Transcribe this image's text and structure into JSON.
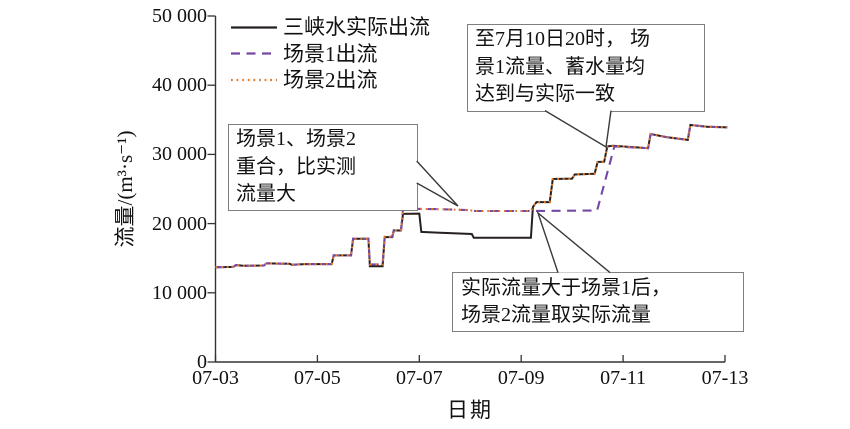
{
  "chart_data": {
    "type": "line",
    "title": "",
    "xlabel": "日期",
    "ylabel": "流量/(m³·s⁻¹)",
    "ylim": [
      0,
      50000
    ],
    "y_ticks": [
      "0",
      "10 000",
      "20 000",
      "30 000",
      "40 000",
      "50 000"
    ],
    "y_tick_values": [
      0,
      10000,
      20000,
      30000,
      40000,
      50000
    ],
    "x_ticks": [
      "07-03",
      "07-05",
      "07-07",
      "07-09",
      "07-11",
      "07-13"
    ],
    "x_tick_days": [
      0,
      2,
      4,
      6,
      8,
      10
    ],
    "x_unit": "days since 07-03 00:00",
    "grid": false,
    "legend_position": "top-left-inside",
    "series": [
      {
        "name": "三峡水实际出流",
        "style": "solid",
        "color": "#262020",
        "points": [
          [
            0,
            13700
          ],
          [
            0.35,
            13750
          ],
          [
            0.4,
            14000
          ],
          [
            0.55,
            13900
          ],
          [
            0.95,
            13950
          ],
          [
            1.0,
            14250
          ],
          [
            1.45,
            14200
          ],
          [
            1.5,
            14050
          ],
          [
            1.75,
            14150
          ],
          [
            2.28,
            14150
          ],
          [
            2.32,
            15400
          ],
          [
            2.66,
            15400
          ],
          [
            2.7,
            17800
          ],
          [
            3.0,
            17800
          ],
          [
            3.03,
            13850
          ],
          [
            3.28,
            13850
          ],
          [
            3.32,
            18050
          ],
          [
            3.47,
            18050
          ],
          [
            3.5,
            19000
          ],
          [
            3.64,
            19000
          ],
          [
            3.68,
            21400
          ],
          [
            4.0,
            21450
          ],
          [
            4.04,
            18800
          ],
          [
            4.35,
            18700
          ],
          [
            5.03,
            18500
          ],
          [
            5.07,
            17950
          ],
          [
            6.19,
            17950
          ],
          [
            6.23,
            22400
          ],
          [
            6.3,
            23100
          ],
          [
            6.56,
            23100
          ],
          [
            6.62,
            26450
          ],
          [
            7.0,
            26500
          ],
          [
            7.05,
            27100
          ],
          [
            7.44,
            27200
          ],
          [
            7.5,
            28900
          ],
          [
            7.63,
            28950
          ],
          [
            7.69,
            31150
          ],
          [
            7.8,
            31250
          ],
          [
            8.49,
            30900
          ],
          [
            8.54,
            32950
          ],
          [
            8.85,
            32500
          ],
          [
            9.27,
            32100
          ],
          [
            9.32,
            34250
          ],
          [
            9.65,
            34000
          ],
          [
            10.05,
            33900
          ]
        ]
      },
      {
        "name": "场景1出流",
        "style": "dashed",
        "color": "#7448A4",
        "points": [
          [
            0,
            13700
          ],
          [
            0.35,
            13750
          ],
          [
            0.4,
            14000
          ],
          [
            0.55,
            13900
          ],
          [
            0.95,
            13950
          ],
          [
            1.0,
            14250
          ],
          [
            1.45,
            14200
          ],
          [
            1.5,
            14050
          ],
          [
            1.75,
            14150
          ],
          [
            2.28,
            14150
          ],
          [
            2.32,
            15400
          ],
          [
            2.66,
            15400
          ],
          [
            2.7,
            17800
          ],
          [
            3.0,
            17800
          ],
          [
            3.03,
            14100
          ],
          [
            3.28,
            14100
          ],
          [
            3.32,
            18100
          ],
          [
            3.47,
            18100
          ],
          [
            3.5,
            19050
          ],
          [
            3.64,
            19050
          ],
          [
            3.68,
            22150
          ],
          [
            4.3,
            22100
          ],
          [
            5.0,
            21950
          ],
          [
            5.05,
            21820
          ],
          [
            6.19,
            21820
          ],
          [
            7.49,
            21900
          ],
          [
            7.83,
            31150
          ],
          [
            8.49,
            30900
          ],
          [
            8.54,
            32950
          ],
          [
            8.85,
            32500
          ],
          [
            9.27,
            32100
          ],
          [
            9.32,
            34250
          ],
          [
            9.65,
            34000
          ],
          [
            10.05,
            33900
          ]
        ]
      },
      {
        "name": "场景2出流",
        "style": "dotted",
        "color": "#E87A2B",
        "points": [
          [
            0,
            13700
          ],
          [
            0.35,
            13750
          ],
          [
            0.4,
            14000
          ],
          [
            0.55,
            13900
          ],
          [
            0.95,
            13950
          ],
          [
            1.0,
            14250
          ],
          [
            1.45,
            14200
          ],
          [
            1.5,
            14050
          ],
          [
            1.75,
            14150
          ],
          [
            2.28,
            14150
          ],
          [
            2.32,
            15400
          ],
          [
            2.66,
            15400
          ],
          [
            2.7,
            17800
          ],
          [
            3.0,
            17800
          ],
          [
            3.03,
            14100
          ],
          [
            3.28,
            14100
          ],
          [
            3.32,
            18100
          ],
          [
            3.47,
            18100
          ],
          [
            3.5,
            19050
          ],
          [
            3.64,
            19050
          ],
          [
            3.68,
            22150
          ],
          [
            4.3,
            22100
          ],
          [
            5.0,
            21950
          ],
          [
            5.05,
            21820
          ],
          [
            6.19,
            21820
          ],
          [
            6.23,
            22400
          ],
          [
            6.3,
            23100
          ],
          [
            6.56,
            23100
          ],
          [
            6.62,
            26450
          ],
          [
            7.0,
            26500
          ],
          [
            7.05,
            27100
          ],
          [
            7.44,
            27200
          ],
          [
            7.5,
            28900
          ],
          [
            7.63,
            28950
          ],
          [
            7.69,
            31150
          ],
          [
            7.8,
            31250
          ],
          [
            8.49,
            30900
          ],
          [
            8.54,
            32950
          ],
          [
            8.85,
            32500
          ],
          [
            9.27,
            32100
          ],
          [
            9.32,
            34250
          ],
          [
            9.65,
            34000
          ],
          [
            10.05,
            33900
          ]
        ]
      }
    ],
    "annotations": [
      {
        "id": "scenario1-reaches-actual",
        "lines": [
          "至7月10日20时，  场",
          "景1流量、蓄水量均",
          "达到与实际一致"
        ],
        "text": "至7月10日20时，场景1流量、蓄水量均达到与实际一致"
      },
      {
        "id": "scenarios-coincide",
        "lines": [
          "场景1、场景2",
          "重合，比实测",
          "流量大"
        ],
        "text": "场景1、场景2重合，比实测流量大"
      },
      {
        "id": "scenario2-takes-actual",
        "lines": [
          "实际流量大于场景1后，",
          "场景2流量取实际流量"
        ],
        "text": "实际流量大于场景1后，场景2流量取实际流量"
      }
    ]
  }
}
